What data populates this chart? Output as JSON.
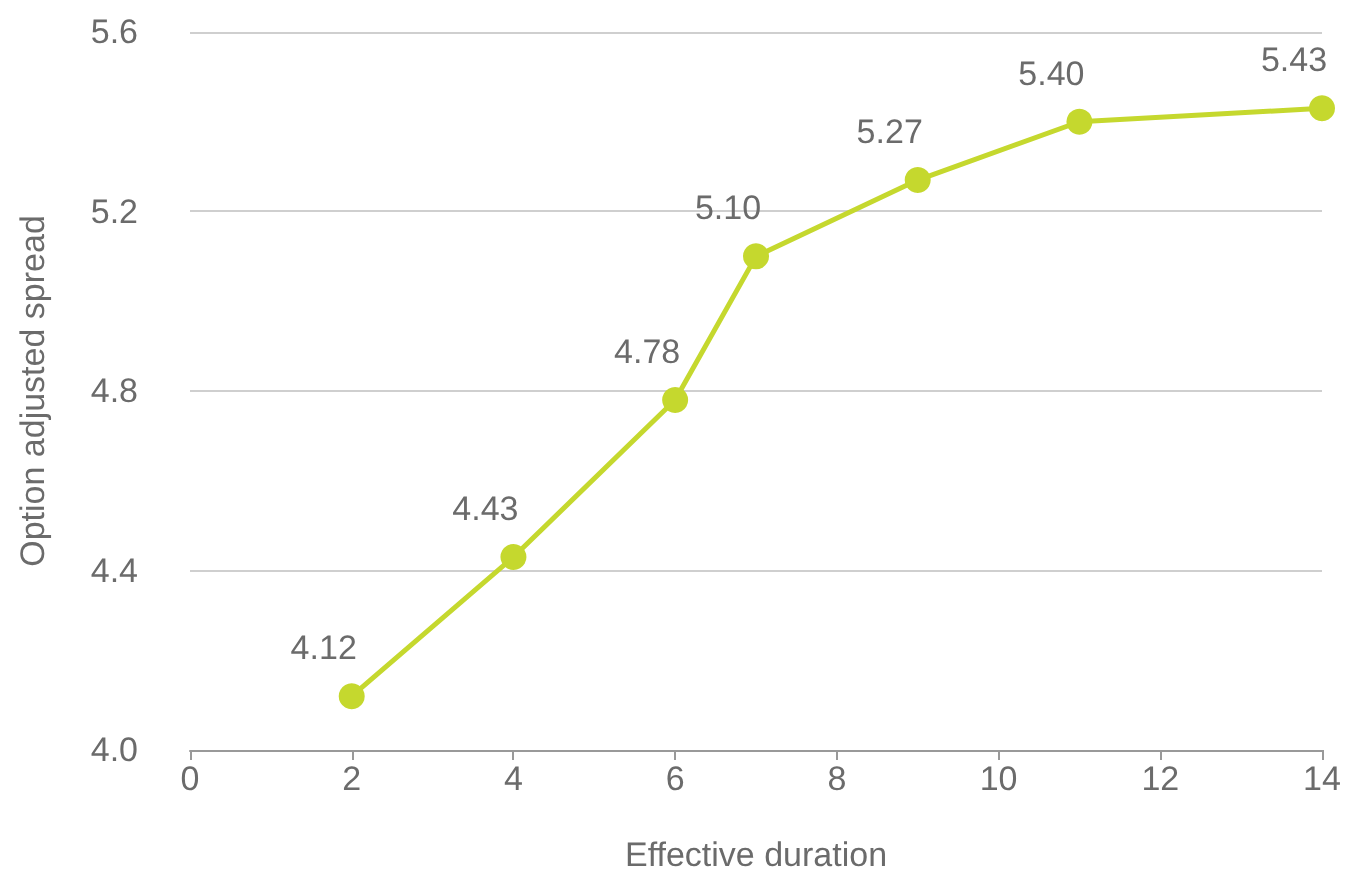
{
  "chart_data": {
    "type": "line",
    "xlabel": "Effective duration",
    "ylabel": "Option adjusted spread",
    "x": [
      2,
      4,
      6,
      7,
      9,
      11,
      14
    ],
    "series": [
      {
        "color": "#c5d82e",
        "values": [
          4.12,
          4.43,
          4.78,
          5.1,
          5.27,
          5.4,
          5.43
        ],
        "value_labels": [
          "4.12",
          "4.43",
          "4.78",
          "5.10",
          "5.27",
          "5.40",
          "5.43"
        ]
      }
    ],
    "xlim": [
      0,
      14
    ],
    "xticks": [
      0,
      2,
      4,
      6,
      8,
      10,
      12,
      14
    ],
    "ylim": [
      4.0,
      5.6
    ],
    "yticks": [
      {
        "value": 4.0,
        "label": "4.0"
      },
      {
        "value": 4.4,
        "label": "4.4"
      },
      {
        "value": 4.8,
        "label": "4.8"
      },
      {
        "value": 5.2,
        "label": "5.2"
      },
      {
        "value": 5.6,
        "label": "5.6"
      }
    ],
    "grid": "y",
    "marker": "circle",
    "line_style": "solid"
  }
}
